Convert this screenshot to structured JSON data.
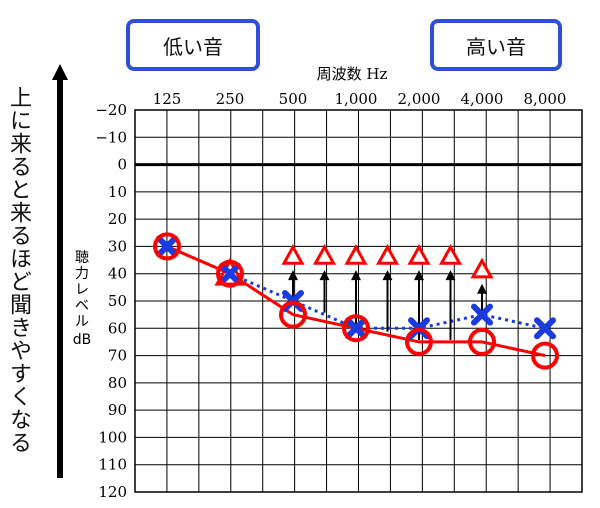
{
  "tags": {
    "low": "低い音",
    "high": "高い音"
  },
  "side_text": "上に来ると来るほど聞きやすくなる",
  "chart_data": {
    "type": "scatter",
    "xlabel": "周波数 Hz",
    "ylabel": "聴力レベル dB",
    "categories": [
      "125",
      "250",
      "500",
      "1,000",
      "2,000",
      "4,000",
      "8,000"
    ],
    "y_ticks": [
      "−20",
      "−10",
      "0",
      "10",
      "20",
      "30",
      "40",
      "50",
      "60",
      "70",
      "80",
      "90",
      "100",
      "110",
      "120"
    ],
    "ylim": [
      -20,
      120
    ],
    "grid": true,
    "series": [
      {
        "marker": "circle",
        "color": "#ff0000",
        "values": [
          30,
          40,
          55,
          60,
          65,
          65,
          70
        ]
      },
      {
        "marker": "cross",
        "color": "#1a3be0",
        "values": [
          30,
          40,
          50,
          60,
          60,
          55,
          60
        ]
      },
      {
        "marker": "triangle",
        "color": "#ff0000",
        "x": [
          "250",
          "500",
          "~707",
          "1,000",
          "~1,414",
          "2,000",
          "~2,828",
          "4,000"
        ],
        "values": [
          40,
          35,
          35,
          35,
          35,
          35,
          35,
          40
        ]
      }
    ],
    "arrows": [
      {
        "x": "500",
        "from": 50,
        "to": 35
      },
      {
        "x": "~707",
        "from": 55,
        "to": 35
      },
      {
        "x": "1,000",
        "from": 60,
        "to": 35
      },
      {
        "x": "~1,414",
        "from": 62,
        "to": 35
      },
      {
        "x": "2,000",
        "from": 65,
        "to": 35
      },
      {
        "x": "~2,828",
        "from": 65,
        "to": 35
      },
      {
        "x": "4,000",
        "from": 55,
        "to": 40
      }
    ],
    "zero_line_bold": true
  }
}
